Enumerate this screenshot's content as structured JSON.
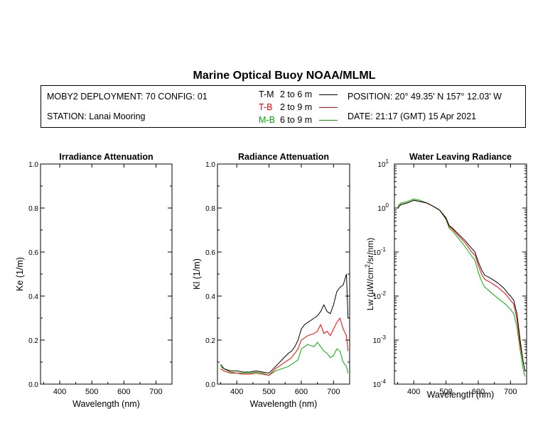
{
  "title": "Marine Optical Buoy NOAA/MLML",
  "info": {
    "deployment": "MOBY2 DEPLOYMENT: 70 CONFIG: 01",
    "station": "STATION: Lanai Mooring",
    "position": "POSITION: 20° 49.35' N   157° 12.03' W",
    "date": "DATE: 21:17 (GMT) 15 Apr 2021",
    "legend": [
      {
        "label": "T-M",
        "range": "2 to 6  m",
        "color": "#000000"
      },
      {
        "label": "T-B",
        "range": "2 to 9  m",
        "color": "#ff0000"
      },
      {
        "label": "M-B",
        "range": "6 to 9  m",
        "color": "#00b000"
      }
    ]
  },
  "colors": {
    "T-M": "#000000",
    "T-B": "#ff0000",
    "M-B": "#00b000"
  },
  "chart_data": [
    {
      "type": "line",
      "title": "Irradiance Attenuation",
      "xlabel": "Wavelength (nm)",
      "ylabel": "Ke  (1/m)",
      "xlim": [
        340,
        750
      ],
      "ylim": [
        0,
        1.0
      ],
      "xticks": [
        400,
        500,
        600,
        700
      ],
      "yticks": [
        "0.0",
        "0.2",
        "0.4",
        "0.6",
        "0.8",
        "1.0"
      ],
      "series": []
    },
    {
      "type": "line",
      "title": "Radiance Attenuation",
      "xlabel": "Wavelength (nm)",
      "ylabel": "Kl  (1/m)",
      "xlim": [
        340,
        750
      ],
      "ylim": [
        0,
        1.0
      ],
      "xticks": [
        400,
        500,
        600,
        700
      ],
      "yticks": [
        "0.0",
        "0.2",
        "0.4",
        "0.6",
        "0.8",
        "1.0"
      ],
      "series": [
        {
          "name": "T-M",
          "color": "#000000",
          "x": [
            350,
            360,
            380,
            400,
            420,
            440,
            460,
            480,
            500,
            520,
            540,
            560,
            570,
            580,
            590,
            600,
            610,
            620,
            640,
            650,
            660,
            670,
            680,
            690,
            700,
            710,
            720,
            730,
            740,
            745
          ],
          "y": [
            0.09,
            0.07,
            0.06,
            0.06,
            0.055,
            0.055,
            0.06,
            0.055,
            0.05,
            0.08,
            0.11,
            0.14,
            0.15,
            0.17,
            0.2,
            0.25,
            0.27,
            0.28,
            0.3,
            0.31,
            0.33,
            0.36,
            0.33,
            0.32,
            0.36,
            0.42,
            0.44,
            0.45,
            0.5,
            0.3
          ]
        },
        {
          "name": "T-B",
          "color": "#ff0000",
          "x": [
            350,
            360,
            380,
            400,
            420,
            440,
            460,
            480,
            500,
            520,
            540,
            560,
            570,
            580,
            590,
            600,
            610,
            620,
            640,
            650,
            660,
            670,
            680,
            690,
            700,
            710,
            720,
            730,
            740,
            745
          ],
          "y": [
            0.07,
            0.06,
            0.05,
            0.05,
            0.045,
            0.045,
            0.05,
            0.045,
            0.04,
            0.07,
            0.09,
            0.11,
            0.12,
            0.14,
            0.16,
            0.2,
            0.21,
            0.22,
            0.23,
            0.24,
            0.27,
            0.23,
            0.24,
            0.22,
            0.25,
            0.28,
            0.3,
            0.25,
            0.22,
            0.15
          ]
        },
        {
          "name": "M-B",
          "color": "#00b000",
          "x": [
            350,
            360,
            380,
            400,
            420,
            440,
            460,
            480,
            500,
            520,
            540,
            560,
            570,
            580,
            590,
            600,
            610,
            620,
            640,
            650,
            660,
            670,
            680,
            690,
            700,
            710,
            720,
            730,
            740,
            745
          ],
          "y": [
            0.08,
            0.07,
            0.055,
            0.05,
            0.05,
            0.05,
            0.055,
            0.05,
            0.04,
            0.06,
            0.07,
            0.08,
            0.09,
            0.1,
            0.11,
            0.16,
            0.17,
            0.18,
            0.17,
            0.19,
            0.17,
            0.15,
            0.14,
            0.12,
            0.13,
            0.16,
            0.15,
            0.1,
            0.08,
            0.05
          ]
        }
      ]
    },
    {
      "type": "line",
      "title": "Water Leaving Radiance",
      "xlabel": "Wavelength (nm)",
      "ylabel": "Lw  (µW/cm²/sr/nm)",
      "xlim": [
        340,
        750
      ],
      "ylim": [
        0.0001,
        10
      ],
      "yscale": "log",
      "xticks": [
        400,
        500,
        600,
        700
      ],
      "ytick_exponents": [
        1,
        0,
        -1,
        -2,
        -3,
        -4
      ],
      "series": [
        {
          "name": "T-M",
          "color": "#000000",
          "x": [
            350,
            360,
            380,
            400,
            420,
            440,
            460,
            480,
            500,
            510,
            520,
            540,
            560,
            580,
            590,
            600,
            610,
            620,
            640,
            660,
            680,
            690,
            700,
            710,
            720,
            730,
            740,
            745
          ],
          "y": [
            1.0,
            1.2,
            1.3,
            1.5,
            1.4,
            1.3,
            1.1,
            0.9,
            0.6,
            0.4,
            0.35,
            0.25,
            0.18,
            0.12,
            0.1,
            0.06,
            0.04,
            0.03,
            0.025,
            0.02,
            0.015,
            0.012,
            0.01,
            0.008,
            0.004,
            0.001,
            0.0003,
            0.0002
          ]
        },
        {
          "name": "T-B",
          "color": "#ff0000",
          "x": [
            350,
            360,
            380,
            400,
            420,
            440,
            460,
            480,
            500,
            510,
            520,
            540,
            560,
            580,
            590,
            600,
            610,
            620,
            640,
            660,
            680,
            690,
            700,
            710,
            720,
            730,
            740,
            745
          ],
          "y": [
            1.0,
            1.2,
            1.3,
            1.5,
            1.4,
            1.3,
            1.1,
            0.9,
            0.58,
            0.38,
            0.33,
            0.23,
            0.16,
            0.1,
            0.085,
            0.05,
            0.032,
            0.024,
            0.02,
            0.016,
            0.012,
            0.01,
            0.008,
            0.0065,
            0.003,
            0.0008,
            0.0003,
            0.0002
          ]
        },
        {
          "name": "M-B",
          "color": "#00b000",
          "x": [
            350,
            360,
            380,
            400,
            420,
            440,
            460,
            480,
            500,
            510,
            520,
            540,
            560,
            580,
            590,
            600,
            610,
            620,
            640,
            660,
            680,
            690,
            700,
            710,
            720,
            730,
            740,
            745
          ],
          "y": [
            1.1,
            1.3,
            1.4,
            1.6,
            1.5,
            1.3,
            1.1,
            0.9,
            0.55,
            0.35,
            0.3,
            0.2,
            0.13,
            0.08,
            0.065,
            0.035,
            0.022,
            0.016,
            0.012,
            0.009,
            0.007,
            0.006,
            0.005,
            0.004,
            0.002,
            0.0006,
            0.0002,
            0.00015
          ]
        }
      ]
    }
  ]
}
